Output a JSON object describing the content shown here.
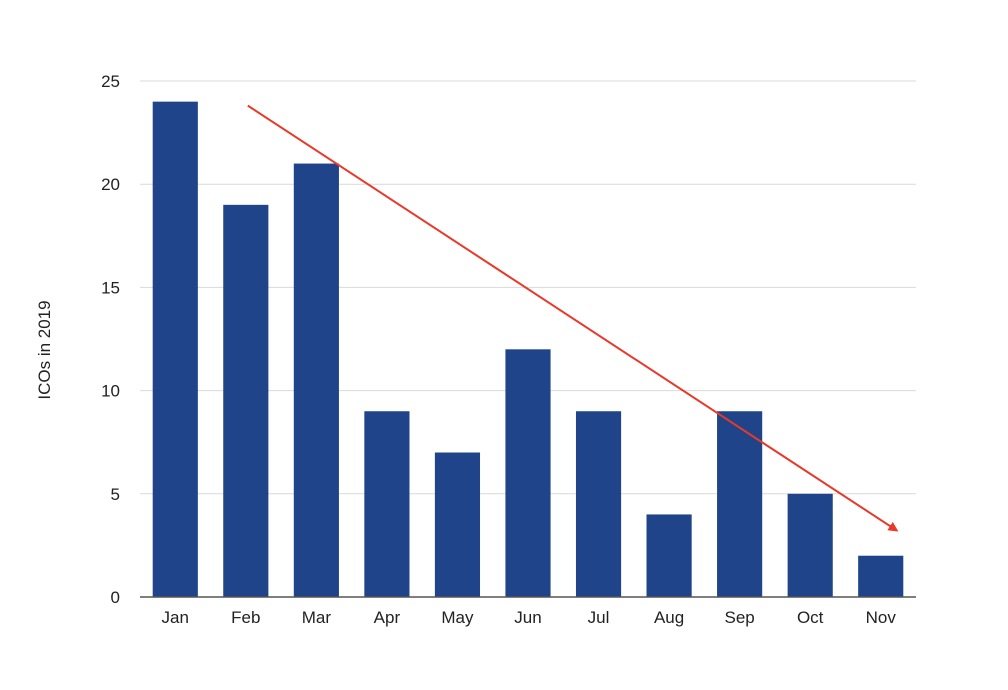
{
  "chart_data": {
    "type": "bar",
    "categories": [
      "Jan",
      "Feb",
      "Mar",
      "Apr",
      "May",
      "Jun",
      "Jul",
      "Aug",
      "Sep",
      "Oct",
      "Nov"
    ],
    "values": [
      24,
      19,
      21,
      9,
      7,
      12,
      9,
      4,
      9,
      5,
      2
    ],
    "ylabel": "ICOs in 2019",
    "xlabel": "",
    "title": "",
    "ylim": [
      0,
      25
    ],
    "yticks": [
      0,
      5,
      10,
      15,
      20,
      25
    ],
    "grid": true,
    "legend": "none",
    "bar_color": "#1f4489",
    "grid_color": "#d9d9d9",
    "axis_color": "#555555",
    "annotations": [
      {
        "type": "arrow",
        "color": "#e8392a",
        "from": {
          "category": "Feb",
          "y": 24
        },
        "to": {
          "category": "Nov",
          "y": 4
        }
      }
    ]
  }
}
